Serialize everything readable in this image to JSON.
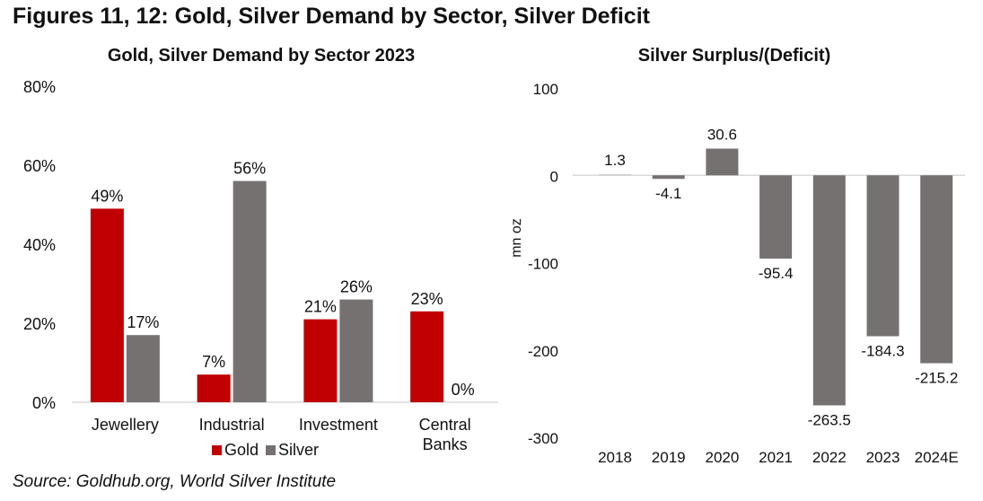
{
  "figure_title": "Figures 11, 12: Gold, Silver Demand by Sector, Silver Deficit",
  "source": "Source: Goldhub.org, World Silver Institute",
  "colors": {
    "gold": "#c00000",
    "silver": "#767171",
    "axis": "#d9d9d9"
  },
  "chart_data": [
    {
      "type": "bar",
      "title": "Gold, Silver Demand by Sector 2023",
      "xlabel": "",
      "ylabel": "",
      "categories": [
        [
          "Jewellery"
        ],
        [
          "Industrial"
        ],
        [
          "Investment"
        ],
        [
          "Central",
          "Banks"
        ]
      ],
      "series": [
        {
          "name": "Gold",
          "values": [
            49,
            7,
            21,
            23
          ],
          "labels": [
            "49%",
            "7%",
            "21%",
            "23%"
          ]
        },
        {
          "name": "Silver",
          "values": [
            17,
            56,
            26,
            0
          ],
          "labels": [
            "17%",
            "56%",
            "26%",
            "0%"
          ]
        }
      ],
      "ylim": [
        0,
        80
      ],
      "yticks": [
        0,
        20,
        40,
        60,
        80
      ],
      "ytick_labels": [
        "0%",
        "20%",
        "40%",
        "60%",
        "80%"
      ],
      "grid": false,
      "legend": {
        "placement": "bottom",
        "entries": [
          "Gold",
          "Silver"
        ]
      }
    },
    {
      "type": "bar",
      "title": "Silver Surplus/(Deficit)",
      "xlabel": "",
      "ylabel": "mn oz",
      "categories": [
        "2018",
        "2019",
        "2020",
        "2021",
        "2022",
        "2023",
        "2024E"
      ],
      "series": [
        {
          "name": "Silver Surplus/(Deficit)",
          "values": [
            1.3,
            -4.1,
            30.6,
            -95.4,
            -263.5,
            -184.3,
            -215.2
          ],
          "labels": [
            "1.3",
            "-4.1",
            "30.6",
            "-95.4",
            "-263.5",
            "-184.3",
            "-215.2"
          ]
        }
      ],
      "ylim": [
        -300,
        100
      ],
      "yticks": [
        -300,
        -200,
        -100,
        0,
        100
      ],
      "ytick_labels": [
        "-300",
        "-200",
        "-100",
        "0",
        "100"
      ],
      "grid": false,
      "legend": null
    }
  ]
}
